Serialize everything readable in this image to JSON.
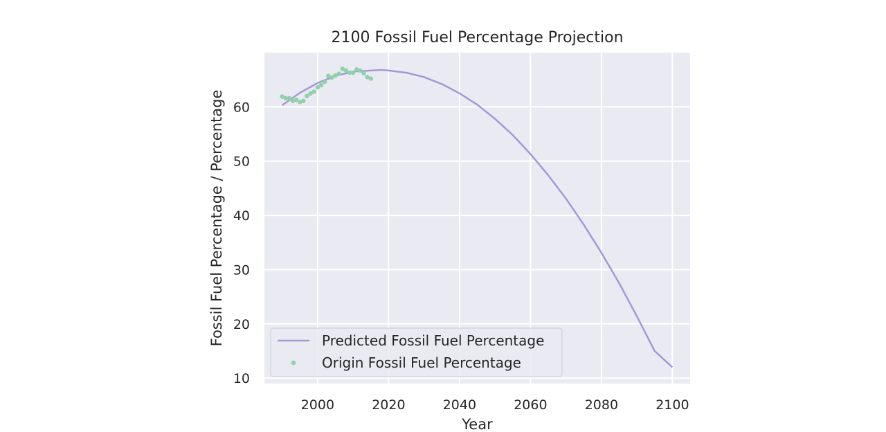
{
  "chart_data": {
    "type": "line",
    "title": "2100 Fossil Fuel Percentage Projection",
    "xlabel": "Year",
    "ylabel": "Fossil Fuel Percentage / Percentage",
    "xlim": [
      1985,
      2105
    ],
    "ylim": [
      9,
      70
    ],
    "xticks": [
      2000,
      2020,
      2040,
      2060,
      2080,
      2100
    ],
    "yticks": [
      10,
      20,
      30,
      40,
      50,
      60
    ],
    "grid": true,
    "legend_position": "lower-left",
    "series": [
      {
        "name": "Predicted Fossil Fuel Percentage",
        "kind": "line",
        "color": "#a398d6",
        "x": [
          1990,
          1995,
          2000,
          2005,
          2010,
          2015,
          2018,
          2020,
          2025,
          2030,
          2035,
          2040,
          2045,
          2050,
          2055,
          2060,
          2065,
          2070,
          2075,
          2080,
          2085,
          2090,
          2095,
          2100
        ],
        "y": [
          60.3,
          62.6,
          64.4,
          65.7,
          66.5,
          66.7,
          66.8,
          66.7,
          66.3,
          65.5,
          64.2,
          62.5,
          60.4,
          57.8,
          54.8,
          51.3,
          47.4,
          43.1,
          38.3,
          33.1,
          27.5,
          21.4,
          15.0,
          12.0
        ]
      },
      {
        "name": "Origin Fossil Fuel Percentage",
        "kind": "scatter",
        "color": "#8fd1ab",
        "x": [
          1990,
          1991,
          1992,
          1993,
          1994,
          1995,
          1996,
          1997,
          1998,
          1999,
          2000,
          2001,
          2002,
          2003,
          2004,
          2005,
          2006,
          2007,
          2008,
          2009,
          2010,
          2011,
          2012,
          2013,
          2014,
          2015
        ],
        "y": [
          61.9,
          61.6,
          61.6,
          61.1,
          61.3,
          60.9,
          61.1,
          62.0,
          62.5,
          62.8,
          63.6,
          64.0,
          64.6,
          65.7,
          65.4,
          65.8,
          66.1,
          67.0,
          66.7,
          66.3,
          66.3,
          66.9,
          66.7,
          66.2,
          65.5,
          65.2
        ]
      }
    ]
  }
}
